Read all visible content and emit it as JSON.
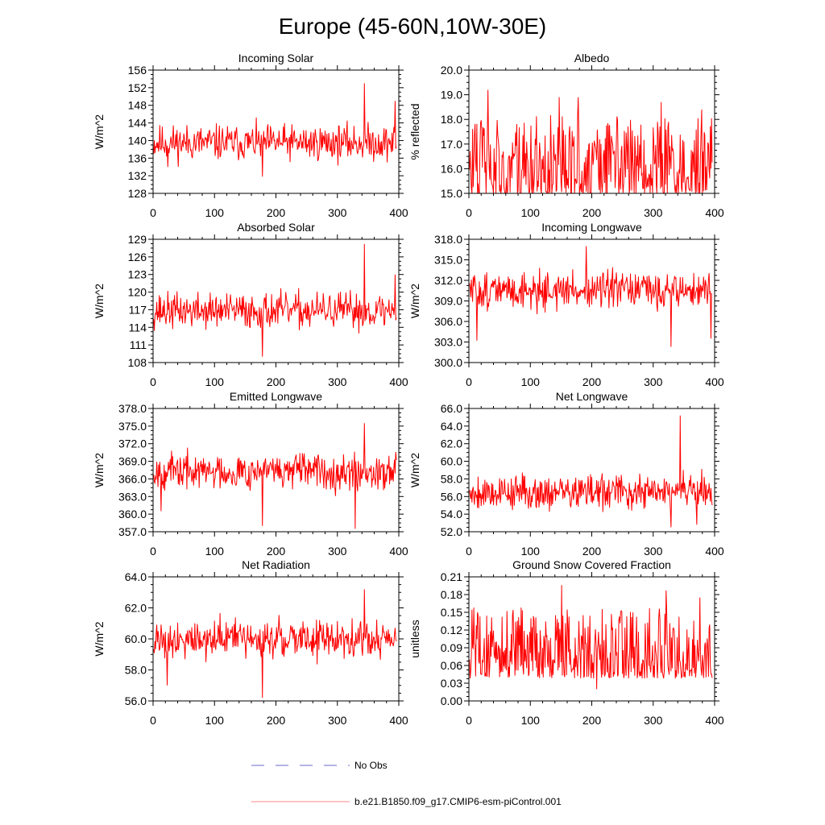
{
  "figure": {
    "title": "Europe (45-60N,10W-30E)"
  },
  "legend": {
    "obs_label": "No Obs",
    "obs_color": "#6a6acd",
    "model_label": "b.e21.B1850.f09_g17.CMIP6-esm-piControl.001",
    "model_color": "#ff0000"
  },
  "chart_data": [
    {
      "type": "line",
      "title": "Incoming Solar",
      "ylabel": "W/m^2",
      "xlim": [
        0,
        400
      ],
      "ylim": [
        128,
        156
      ],
      "xticks": [
        0,
        100,
        200,
        300,
        400
      ],
      "yticks": [
        128,
        132,
        136,
        140,
        144,
        148,
        152,
        156
      ],
      "ydec": 0,
      "color": "#ff0000",
      "n": 396,
      "base": 139.5,
      "amp": 6,
      "seed": 11,
      "spikes": [
        [
          343,
          153.0
        ],
        [
          177,
          131.8
        ],
        [
          393,
          149.0
        ],
        [
          23,
          134.0
        ]
      ]
    },
    {
      "type": "line",
      "title": "Albedo",
      "ylabel": "% reflected",
      "xlim": [
        0,
        400
      ],
      "ylim": [
        15.0,
        20.0
      ],
      "xticks": [
        0,
        100,
        200,
        300,
        400
      ],
      "yticks": [
        15.0,
        16.0,
        17.0,
        18.0,
        19.0,
        20.0
      ],
      "ydec": 1,
      "color": "#ff0000",
      "n": 396,
      "base": 15.7,
      "amp": 1.6,
      "seed": 23,
      "skew": true,
      "spikes": [
        [
          30,
          19.2
        ],
        [
          146,
          18.9
        ],
        [
          177,
          18.9
        ],
        [
          312,
          18.7
        ],
        [
          378,
          18.4
        ]
      ]
    },
    {
      "type": "line",
      "title": "Absorbed Solar",
      "ylabel": "W/m^2",
      "xlim": [
        0,
        400
      ],
      "ylim": [
        108,
        129
      ],
      "xticks": [
        0,
        100,
        200,
        300,
        400
      ],
      "yticks": [
        108,
        111,
        114,
        117,
        120,
        123,
        126,
        129
      ],
      "ydec": 0,
      "color": "#ff0000",
      "n": 396,
      "base": 116.8,
      "amp": 4.5,
      "seed": 37,
      "spikes": [
        [
          343,
          128.2
        ],
        [
          177,
          109.0
        ],
        [
          393,
          123.0
        ]
      ]
    },
    {
      "type": "line",
      "title": "Incoming Longwave",
      "ylabel": "W/m^2",
      "xlim": [
        0,
        400
      ],
      "ylim": [
        300.0,
        318.0
      ],
      "xticks": [
        0,
        100,
        200,
        300,
        400
      ],
      "yticks": [
        300.0,
        303.0,
        306.0,
        309.0,
        312.0,
        315.0,
        318.0
      ],
      "ydec": 1,
      "color": "#ff0000",
      "n": 396,
      "base": 310.5,
      "amp": 4,
      "seed": 51,
      "spikes": [
        [
          190,
          317.0
        ],
        [
          328,
          302.3
        ],
        [
          393,
          303.5
        ],
        [
          12,
          303.2
        ]
      ]
    },
    {
      "type": "line",
      "title": "Emitted Longwave",
      "ylabel": "W/m^2",
      "xlim": [
        0,
        400
      ],
      "ylim": [
        357.0,
        378.0
      ],
      "xticks": [
        0,
        100,
        200,
        300,
        400
      ],
      "yticks": [
        357.0,
        360.0,
        363.0,
        366.0,
        369.0,
        372.0,
        375.0,
        378.0
      ],
      "ydec": 1,
      "color": "#ff0000",
      "n": 396,
      "base": 367.3,
      "amp": 4.5,
      "seed": 67,
      "spikes": [
        [
          343,
          375.5
        ],
        [
          328,
          357.5
        ],
        [
          177,
          358.0
        ],
        [
          12,
          360.5
        ]
      ]
    },
    {
      "type": "line",
      "title": "Net Longwave",
      "ylabel": "W/m^2",
      "xlim": [
        0,
        400
      ],
      "ylim": [
        52.0,
        66.0
      ],
      "xticks": [
        0,
        100,
        200,
        300,
        400
      ],
      "yticks": [
        52.0,
        54.0,
        56.0,
        58.0,
        60.0,
        62.0,
        64.0,
        66.0
      ],
      "ydec": 1,
      "color": "#ff0000",
      "n": 396,
      "base": 56.5,
      "amp": 3,
      "seed": 79,
      "spikes": [
        [
          343,
          65.2
        ],
        [
          328,
          52.5
        ],
        [
          370,
          52.8
        ]
      ]
    },
    {
      "type": "line",
      "title": "Net Radiation",
      "ylabel": "W/m^2",
      "xlim": [
        0,
        400
      ],
      "ylim": [
        56.0,
        64.0
      ],
      "xticks": [
        0,
        100,
        200,
        300,
        400
      ],
      "yticks": [
        56.0,
        58.0,
        60.0,
        62.0,
        64.0
      ],
      "ydec": 1,
      "color": "#ff0000",
      "n": 396,
      "base": 60.0,
      "amp": 1.8,
      "seed": 91,
      "spikes": [
        [
          177,
          56.2
        ],
        [
          343,
          63.2
        ],
        [
          22,
          57.0
        ]
      ]
    },
    {
      "type": "line",
      "title": "Ground Snow Covered Fraction",
      "ylabel": "unitless",
      "xlim": [
        0,
        400
      ],
      "ylim": [
        0.0,
        0.21
      ],
      "xticks": [
        0,
        100,
        200,
        300,
        400
      ],
      "yticks": [
        0.0,
        0.03,
        0.06,
        0.09,
        0.12,
        0.15,
        0.18,
        0.21
      ],
      "ydec": 2,
      "color": "#ff0000",
      "n": 396,
      "base": 0.065,
      "amp": 0.06,
      "seed": 103,
      "skew": true,
      "spikes": [
        [
          150,
          0.196
        ],
        [
          320,
          0.187
        ],
        [
          207,
          0.02
        ],
        [
          375,
          0.175
        ]
      ]
    }
  ]
}
